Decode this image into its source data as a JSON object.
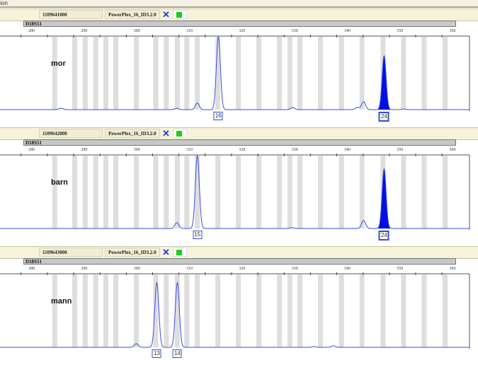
{
  "window": {
    "title_fragment": "tion"
  },
  "colors": {
    "trace": "#3a4ce8",
    "selected_peak": "#0010e0",
    "bin": "#d8d8d8",
    "status_ok": "#18d018",
    "header_bg": "#f6f3da"
  },
  "chart_data": {
    "type": "line",
    "x_axis": {
      "ticks": [
        280,
        290,
        300,
        310,
        320,
        330,
        340,
        350,
        360
      ],
      "range": [
        277.4,
        363.6
      ],
      "unit": "bp"
    },
    "y_axis": {
      "labels": "none",
      "scale": "relative height"
    },
    "bins_bp": [
      284.4,
      288.2,
      290.2,
      292.2,
      294.1,
      296.0,
      299.9,
      303.6,
      305.6,
      307.7,
      309.5,
      311.5,
      315.4,
      319.3,
      323.2,
      327.1,
      329.1,
      331.0,
      334.9,
      338.9,
      342.8,
      346.8,
      350.7,
      354.6,
      358.6
    ],
    "panels": [
      {
        "sample": "1109641000",
        "kit": "PowerPlex_16_ID3.2.0",
        "marker": "D18S51",
        "label": "mor",
        "peaks": [
          {
            "bp": 285.6,
            "height": 0.02
          },
          {
            "bp": 307.6,
            "height": 0.02
          },
          {
            "bp": 311.5,
            "height": 0.09
          },
          {
            "bp": 315.5,
            "height": 1.0,
            "allele": "16"
          },
          {
            "bp": 329.6,
            "height": 0.03
          },
          {
            "bp": 341.9,
            "height": 0.03
          },
          {
            "bp": 343.1,
            "height": 0.11
          },
          {
            "bp": 347.0,
            "height": 0.74,
            "allele": "24",
            "selected": true
          },
          {
            "bp": 350.7,
            "height": 0.01
          }
        ]
      },
      {
        "sample": "1109642000",
        "kit": "PowerPlex_16_ID3.2.0",
        "marker": "D18S51",
        "label": "barn",
        "peaks": [
          {
            "bp": 307.6,
            "height": 0.08
          },
          {
            "bp": 311.5,
            "height": 1.0,
            "allele": "15"
          },
          {
            "bp": 329.5,
            "height": 0.01
          },
          {
            "bp": 343.1,
            "height": 0.11
          },
          {
            "bp": 347.0,
            "height": 0.82,
            "allele": "24",
            "selected": true
          }
        ]
      },
      {
        "sample": "1109643000",
        "kit": "PowerPlex_16_ID3.2.0",
        "marker": "D18S51",
        "label": "mann",
        "peaks": [
          {
            "bp": 299.9,
            "height": 0.05
          },
          {
            "bp": 303.8,
            "height": 0.89,
            "allele": "13"
          },
          {
            "bp": 307.7,
            "height": 0.89,
            "allele": "14"
          },
          {
            "bp": 333.7,
            "height": 0.01
          },
          {
            "bp": 337.4,
            "height": 0.02
          }
        ]
      }
    ]
  }
}
